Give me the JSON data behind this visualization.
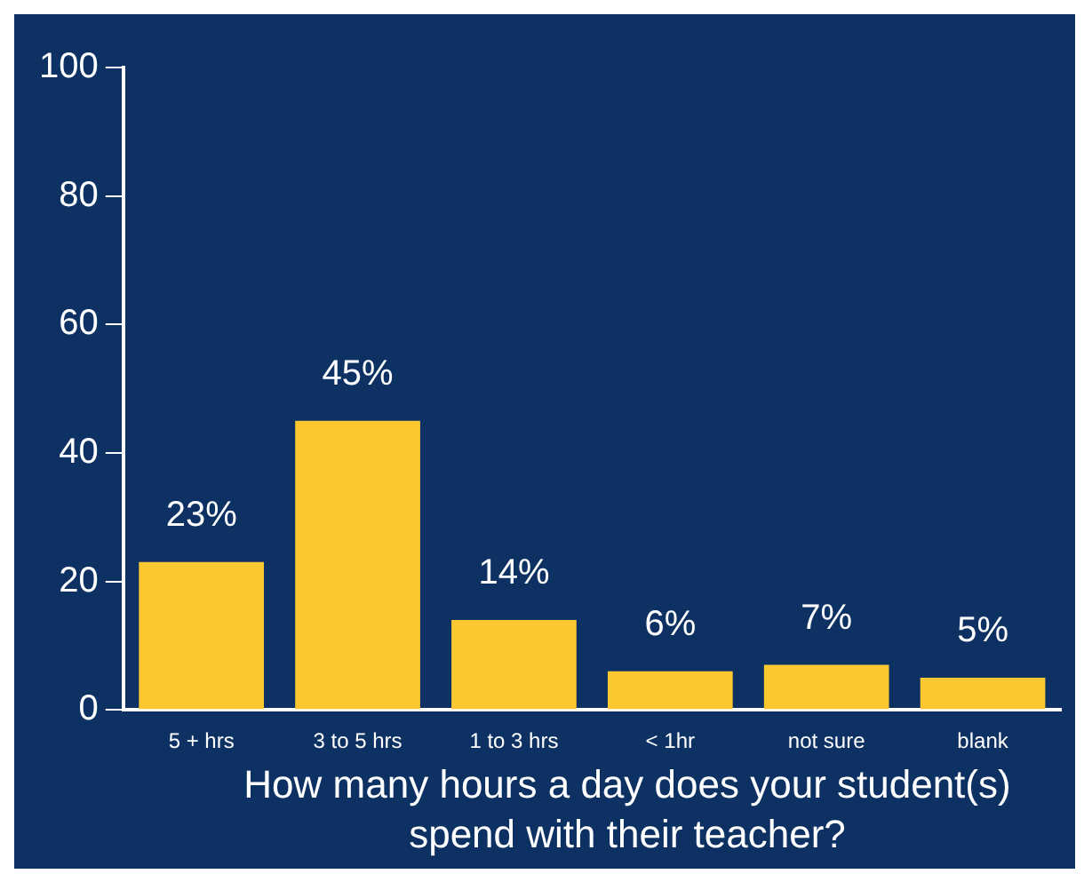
{
  "chart_data": {
    "type": "bar",
    "categories": [
      "5 + hrs",
      "3 to 5 hrs",
      "1 to 3 hrs",
      "< 1hr",
      "not sure",
      "blank"
    ],
    "values": [
      23,
      45,
      14,
      6,
      7,
      5
    ],
    "value_labels": [
      "23%",
      "45%",
      "14%",
      "6%",
      "7%",
      "5%"
    ],
    "color": "#fbc832",
    "ylim": [
      0,
      100
    ],
    "yticks": [
      0,
      20,
      40,
      60,
      80,
      100
    ],
    "grid": false,
    "legend": false,
    "xlabel": "How many hours a day does your student(s) spend with their teacher?"
  }
}
